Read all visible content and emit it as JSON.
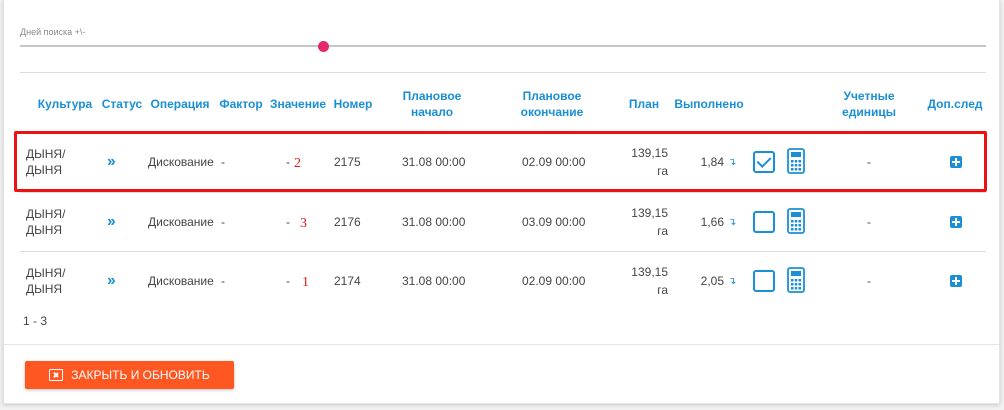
{
  "filter": {
    "label": "Дней поиска +\\-",
    "slider_fraction": 0.314
  },
  "table": {
    "columns": {
      "crop": "Культура",
      "status": "Статус",
      "operation": "Операция",
      "factor": "Фактор",
      "value": "Значение",
      "number": "Номер",
      "plan_start": "Плановое начало",
      "plan_end": "Плановое окончание",
      "plan": "План",
      "done": "Выполнено",
      "units": "Учетные единицы",
      "extra": "Доп.след"
    },
    "rows": [
      {
        "crop": "ДЫНЯ/ ДЫНЯ",
        "status_icon": "chevron-double-right-icon",
        "status_text": "››",
        "operation": "Дискование",
        "factor": "-",
        "value": "-",
        "annotation": "2",
        "number": "2175",
        "plan_start": "31.08 00:00",
        "plan_end": "02.09 00:00",
        "plan_value": "139,15",
        "plan_unit": "га",
        "done": "1,84",
        "done_arrow": "↴",
        "checked": true,
        "units": "-"
      },
      {
        "crop": "ДЫНЯ/ ДЫНЯ",
        "status_icon": "chevron-double-right-icon",
        "status_text": "››",
        "operation": "Дискование",
        "factor": "-",
        "value": "-",
        "annotation": "3",
        "number": "2176",
        "plan_start": "31.08 00:00",
        "plan_end": "03.09 00:00",
        "plan_value": "139,15",
        "plan_unit": "га",
        "done": "1,66",
        "done_arrow": "↴",
        "checked": false,
        "units": "-"
      },
      {
        "crop": "ДЫНЯ/ ДЫНЯ",
        "status_icon": "chevron-double-right-icon",
        "status_text": "››",
        "operation": "Дискование",
        "factor": "-",
        "value": "-",
        "annotation": "1",
        "number": "2174",
        "plan_start": "31.08 00:00",
        "plan_end": "02.09 00:00",
        "plan_value": "139,15",
        "plan_unit": "га",
        "done": "2,05",
        "done_arrow": "↴",
        "checked": false,
        "units": "-"
      }
    ]
  },
  "pager": {
    "text": "1 - 3"
  },
  "footer": {
    "close_label": "ЗАКРЫТЬ И ОБНОВИТЬ"
  },
  "colors": {
    "accent": "#1a8fd6",
    "button": "#ff5722",
    "highlight": "#ee1111",
    "slider_thumb": "#e5286b"
  }
}
